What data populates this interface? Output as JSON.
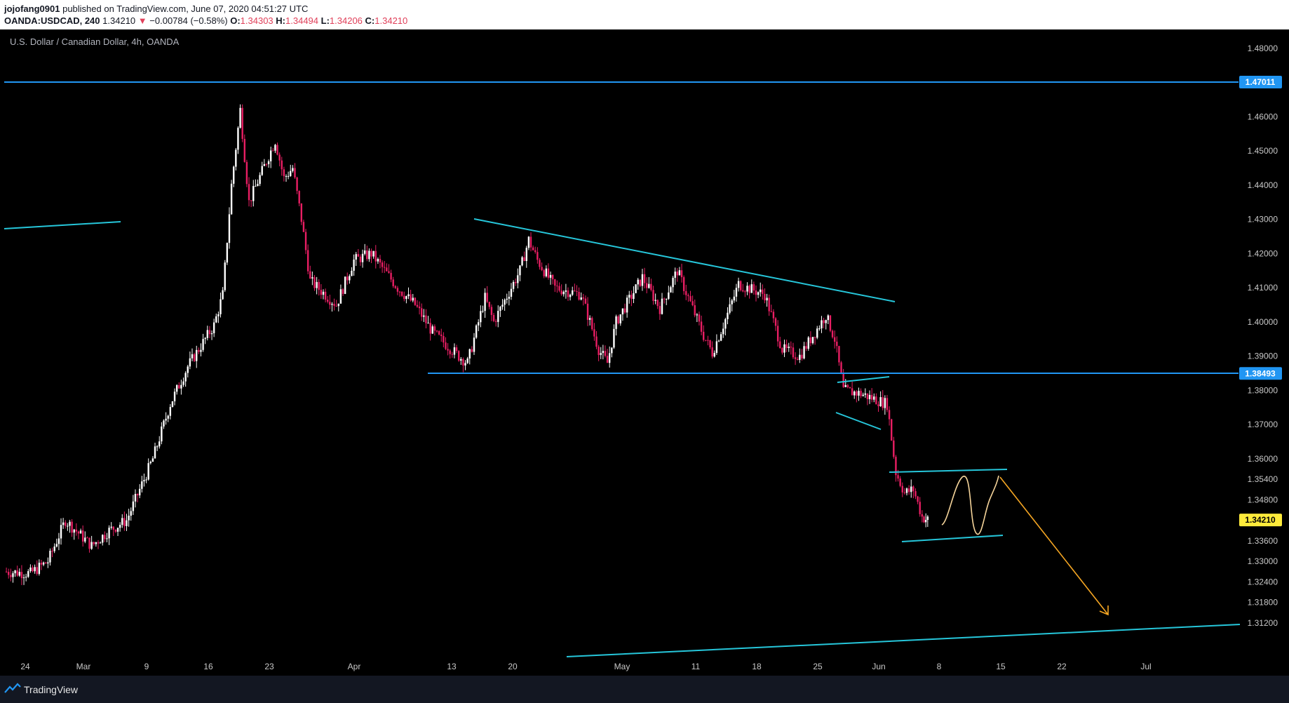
{
  "header": {
    "author": "jojofang0901",
    "published": "published on TradingView.com, June 07, 2020 04:51:27 UTC",
    "symbol": "OANDA:USDCAD, 240",
    "last": "1.34210",
    "change_arrow": "▼",
    "change": "−0.00784 (−0.58%)",
    "o_label": "O:",
    "o_value": "1.34303",
    "h_label": "H:",
    "h_value": "1.34494",
    "l_label": "L:",
    "l_value": "1.34206",
    "c_label": "C:",
    "c_value": "1.34210"
  },
  "footer": {
    "brand": "TradingView",
    "logo_icon": "tradingview-logo-icon"
  },
  "colors": {
    "up_candle": "#ffffff",
    "down_candle": "#e91e63",
    "trendline": "#26c6da",
    "horizontal_line": "#2196f3",
    "projection": "#f5a623",
    "current_price_tag": "#ffeb3b"
  },
  "chart_data": {
    "type": "candlestick",
    "title": "U.S. Dollar / Canadian Dollar, 4h, OANDA",
    "ylim": [
      1.306,
      1.482
    ],
    "y_ticks": [
      "1.48000",
      "1.46000",
      "1.45000",
      "1.44000",
      "1.43000",
      "1.42000",
      "1.41000",
      "1.40000",
      "1.39000",
      "1.38000",
      "1.37000",
      "1.36000",
      "1.35400",
      "1.34800",
      "1.33600",
      "1.33000",
      "1.32400",
      "1.31800",
      "1.31200"
    ],
    "x_ticks": [
      "24",
      "Mar",
      "9",
      "16",
      "23",
      "Apr",
      "13",
      "20",
      "May",
      "11",
      "18",
      "25",
      "Jun",
      "8",
      "15",
      "22",
      "Jul"
    ],
    "price_tags": [
      {
        "value": "1.47011",
        "style": "horizontal-line"
      },
      {
        "value": "1.38493",
        "style": "horizontal-line"
      },
      {
        "value": "1.34210",
        "style": "current-price"
      }
    ],
    "horizontal_levels": [
      1.47011,
      1.38493
    ],
    "price_path": [
      {
        "x": "Feb 21",
        "close": 1.327
      },
      {
        "x": "Feb 24",
        "close": 1.3265
      },
      {
        "x": "Feb 26",
        "close": 1.33
      },
      {
        "x": "Feb 28",
        "close": 1.342
      },
      {
        "x": "Mar 2",
        "close": 1.3345
      },
      {
        "x": "Mar 4",
        "close": 1.339
      },
      {
        "x": "Mar 6",
        "close": 1.342
      },
      {
        "x": "Mar 9",
        "close": 1.36
      },
      {
        "x": "Mar 11",
        "close": 1.376
      },
      {
        "x": "Mar 13",
        "close": 1.387
      },
      {
        "x": "Mar 16",
        "close": 1.399
      },
      {
        "x": "Mar 17",
        "close": 1.408
      },
      {
        "x": "Mar 18",
        "close": 1.44
      },
      {
        "x": "Mar 19",
        "close": 1.462
      },
      {
        "x": "Mar 20",
        "close": 1.435
      },
      {
        "x": "Mar 23",
        "close": 1.453
      },
      {
        "x": "Mar 24",
        "close": 1.442
      },
      {
        "x": "Mar 25",
        "close": 1.445
      },
      {
        "x": "Mar 26",
        "close": 1.43
      },
      {
        "x": "Mar 27",
        "close": 1.412
      },
      {
        "x": "Mar 30",
        "close": 1.405
      },
      {
        "x": "Apr 1",
        "close": 1.418
      },
      {
        "x": "Apr 3",
        "close": 1.42
      },
      {
        "x": "Apr 6",
        "close": 1.41
      },
      {
        "x": "Apr 8",
        "close": 1.405
      },
      {
        "x": "Apr 10",
        "close": 1.397
      },
      {
        "x": "Apr 13",
        "close": 1.39
      },
      {
        "x": "Apr 14",
        "close": 1.388
      },
      {
        "x": "Apr 16",
        "close": 1.407
      },
      {
        "x": "Apr 17",
        "close": 1.4
      },
      {
        "x": "Apr 20",
        "close": 1.415
      },
      {
        "x": "Apr 21",
        "close": 1.424
      },
      {
        "x": "Apr 22",
        "close": 1.418
      },
      {
        "x": "Apr 24",
        "close": 1.41
      },
      {
        "x": "Apr 27",
        "close": 1.408
      },
      {
        "x": "Apr 29",
        "close": 1.392
      },
      {
        "x": "Apr 30",
        "close": 1.388
      },
      {
        "x": "May 1",
        "close": 1.4
      },
      {
        "x": "May 4",
        "close": 1.413
      },
      {
        "x": "May 6",
        "close": 1.404
      },
      {
        "x": "May 8",
        "close": 1.415
      },
      {
        "x": "May 11",
        "close": 1.396
      },
      {
        "x": "May 12",
        "close": 1.391
      },
      {
        "x": "May 14",
        "close": 1.404
      },
      {
        "x": "May 15",
        "close": 1.411
      },
      {
        "x": "May 18",
        "close": 1.408
      },
      {
        "x": "May 20",
        "close": 1.392
      },
      {
        "x": "May 22",
        "close": 1.39
      },
      {
        "x": "May 25",
        "close": 1.402
      },
      {
        "x": "May 26",
        "close": 1.395
      },
      {
        "x": "May 27",
        "close": 1.38
      },
      {
        "x": "May 29",
        "close": 1.379
      },
      {
        "x": "Jun 1",
        "close": 1.376
      },
      {
        "x": "Jun 2",
        "close": 1.356
      },
      {
        "x": "Jun 3",
        "close": 1.35
      },
      {
        "x": "Jun 4",
        "close": 1.351
      },
      {
        "x": "Jun 5",
        "close": 1.343
      },
      {
        "x": "Jun 5",
        "close": 1.3421
      }
    ]
  }
}
